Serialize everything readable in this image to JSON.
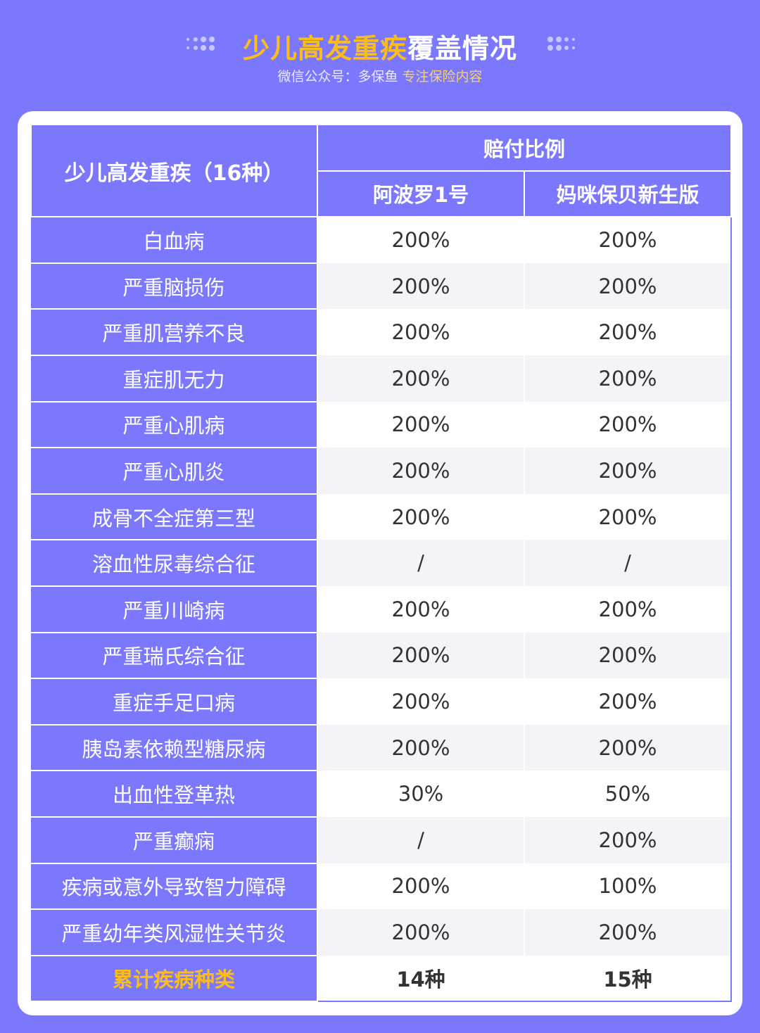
{
  "header": {
    "title_highlight": "少儿高发重疾",
    "title_rest": "覆盖情况",
    "subtitle_prefix": "微信公众号：多保鱼",
    "subtitle_highlight": "专注保险内容"
  },
  "colors": {
    "background": "#7b78fe",
    "accent": "#fbbd1a"
  },
  "table": {
    "first_header": "少儿高发重疾（16种）",
    "group_header": "赔付比例",
    "products": [
      "阿波罗1号",
      "妈咪保贝新生版"
    ],
    "rows": [
      {
        "name": "白血病",
        "a": "200%",
        "b": "200%"
      },
      {
        "name": "严重脑损伤",
        "a": "200%",
        "b": "200%"
      },
      {
        "name": "严重肌营养不良",
        "a": "200%",
        "b": "200%"
      },
      {
        "name": "重症肌无力",
        "a": "200%",
        "b": "200%"
      },
      {
        "name": "严重心肌病",
        "a": "200%",
        "b": "200%"
      },
      {
        "name": "严重心肌炎",
        "a": "200%",
        "b": "200%"
      },
      {
        "name": "成骨不全症第三型",
        "a": "200%",
        "b": "200%"
      },
      {
        "name": "溶血性尿毒综合征",
        "a": "/",
        "b": "/"
      },
      {
        "name": "严重川崎病",
        "a": "200%",
        "b": "200%"
      },
      {
        "name": "严重瑞氏综合征",
        "a": "200%",
        "b": "200%"
      },
      {
        "name": "重症手足口病",
        "a": "200%",
        "b": "200%"
      },
      {
        "name": "胰岛素依赖型糖尿病",
        "a": "200%",
        "b": "200%"
      },
      {
        "name": "出血性登革热",
        "a": "30%",
        "b": "50%"
      },
      {
        "name": "严重癫痫",
        "a": "/",
        "b": "200%"
      },
      {
        "name": "疾病或意外导致智力障碍",
        "a": "200%",
        "b": "100%"
      },
      {
        "name": "严重幼年类风湿性关节炎",
        "a": "200%",
        "b": "200%"
      }
    ],
    "total": {
      "name": "累计疾病种类",
      "a": "14种",
      "b": "15种"
    }
  }
}
